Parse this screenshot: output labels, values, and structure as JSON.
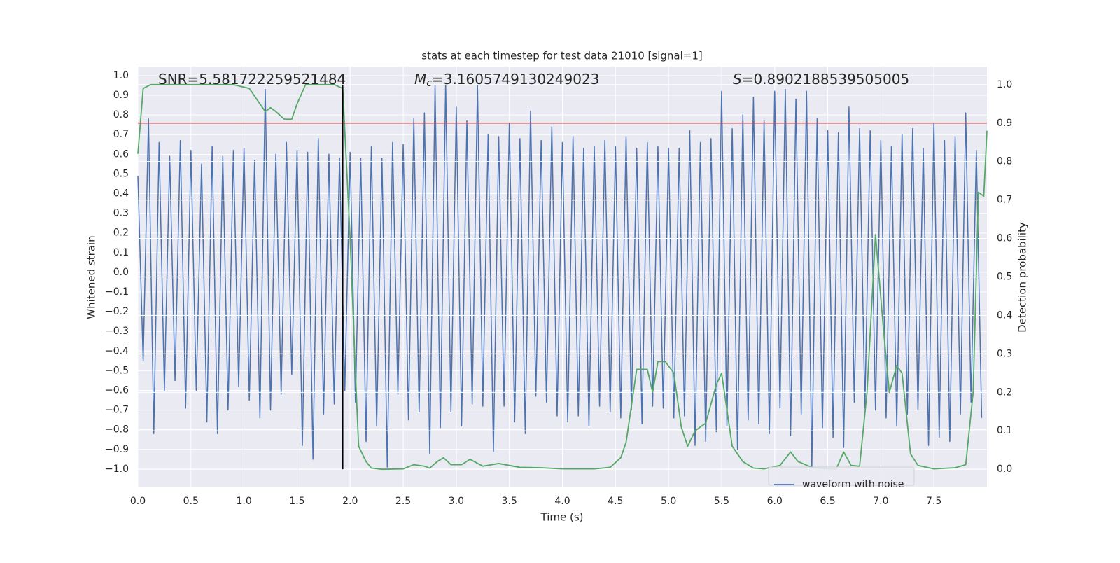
{
  "chart_data": {
    "type": "line",
    "title": "stats at each timestep for test data 21010 [signal=1]",
    "xlabel": "Time (s)",
    "ylabel": "Whitened strain",
    "y2label": "Detection probability",
    "annotations": [
      {
        "text": "SNR=5.581722259521484"
      },
      {
        "symbol": "M",
        "subscript": "c",
        "text": "=3.1605749130249023"
      },
      {
        "symbol": "S",
        "text": "=0.8902188539505005"
      }
    ],
    "xlim": [
      0,
      8.0
    ],
    "ylim": [
      -1.093,
      1.046
    ],
    "y2lim": [
      -0.047,
      1.047
    ],
    "xticks": [
      {
        "value": 0,
        "label": "0.0"
      },
      0.5,
      {
        "value": 1,
        "label": "1.0"
      },
      1.5,
      {
        "value": 2,
        "label": "2.0"
      },
      2.5,
      {
        "value": 3,
        "label": "3.0"
      },
      3.5,
      {
        "value": 4,
        "label": "4.0"
      },
      4.5,
      {
        "value": 5,
        "label": "5.0"
      },
      5.5,
      {
        "value": 6,
        "label": "6.0"
      },
      6.5,
      {
        "value": 7,
        "label": "7.0"
      },
      7.5
    ],
    "yticks": [
      {
        "value": -1,
        "label": "−1.0"
      },
      {
        "value": -0.9,
        "label": "−0.9"
      },
      {
        "value": -0.8,
        "label": "−0.8"
      },
      {
        "value": -0.7,
        "label": "−0.7"
      },
      {
        "value": -0.6,
        "label": "−0.6"
      },
      {
        "value": -0.5,
        "label": "−0.5"
      },
      {
        "value": -0.4,
        "label": "−0.4"
      },
      {
        "value": -0.3,
        "label": "−0.3"
      },
      {
        "value": -0.2,
        "label": "−0.2"
      },
      {
        "value": -0.1,
        "label": "−0.1"
      },
      {
        "value": 0,
        "label": "0.0"
      },
      0.1,
      0.2,
      0.3,
      0.4,
      0.5,
      0.6,
      0.7,
      0.8,
      0.9,
      {
        "value": 1,
        "label": "1.0"
      }
    ],
    "y2ticks": [
      {
        "value": 0,
        "label": "0.0"
      },
      0.1,
      0.2,
      0.3,
      0.4,
      0.5,
      0.6,
      0.7,
      0.8,
      0.9,
      {
        "value": 1,
        "label": "1.0"
      }
    ],
    "grid": true,
    "legend": "lower right",
    "hlines": [
      {
        "y": 0.9,
        "axis": "y2",
        "color": "#c44e52"
      }
    ],
    "vlines": [
      {
        "x": 1.93,
        "ymin": 0,
        "ymax": 1,
        "axis": "y2",
        "color": "#000000"
      }
    ],
    "series": [
      {
        "name": "waveform with noise",
        "color": "#4c72b0",
        "axis": "y",
        "x": [
          0,
          0.05,
          0.1,
          0.15,
          0.2,
          0.25,
          0.3,
          0.35,
          0.4,
          0.45,
          0.5,
          0.55,
          0.6,
          0.65,
          0.7,
          0.75,
          0.8,
          0.85,
          0.9,
          0.95,
          1,
          1.05,
          1.1,
          1.15,
          1.2,
          1.25,
          1.3,
          1.35,
          1.4,
          1.45,
          1.5,
          1.55,
          1.6,
          1.65,
          1.7,
          1.75,
          1.8,
          1.85,
          1.9,
          1.95,
          2,
          2.05,
          2.1,
          2.15,
          2.2,
          2.25,
          2.3,
          2.35,
          2.4,
          2.45,
          2.5,
          2.55,
          2.6,
          2.65,
          2.7,
          2.75,
          2.8,
          2.85,
          2.9,
          2.95,
          3,
          3.05,
          3.1,
          3.15,
          3.2,
          3.25,
          3.3,
          3.35,
          3.4,
          3.45,
          3.5,
          3.55,
          3.6,
          3.65,
          3.7,
          3.75,
          3.8,
          3.85,
          3.9,
          3.95,
          4,
          4.05,
          4.1,
          4.15,
          4.2,
          4.25,
          4.3,
          4.35,
          4.4,
          4.45,
          4.5,
          4.55,
          4.6,
          4.65,
          4.7,
          4.75,
          4.8,
          4.85,
          4.9,
          4.95,
          5,
          5.05,
          5.1,
          5.15,
          5.2,
          5.25,
          5.3,
          5.35,
          5.4,
          5.45,
          5.5,
          5.55,
          5.6,
          5.65,
          5.7,
          5.75,
          5.8,
          5.85,
          5.9,
          5.95,
          6,
          6.05,
          6.1,
          6.15,
          6.2,
          6.25,
          6.3,
          6.35,
          6.4,
          6.45,
          6.5,
          6.55,
          6.6,
          6.65,
          6.7,
          6.75,
          6.8,
          6.85,
          6.9,
          6.95,
          7,
          7.05,
          7.1,
          7.15,
          7.2,
          7.25,
          7.3,
          7.35,
          7.4,
          7.45,
          7.5,
          7.55,
          7.6,
          7.65,
          7.7,
          7.75,
          7.8,
          7.85,
          7.9,
          7.95
        ],
        "values": [
          0.49,
          -0.45,
          0.78,
          -0.82,
          0.66,
          -0.6,
          0.59,
          -0.55,
          0.67,
          -0.69,
          0.62,
          -0.6,
          0.55,
          -0.76,
          0.64,
          -0.82,
          0.59,
          -0.7,
          0.62,
          -0.58,
          0.63,
          -0.65,
          0.57,
          -0.74,
          0.93,
          -0.7,
          0.6,
          -0.62,
          0.66,
          -0.52,
          0.62,
          -0.88,
          0.61,
          -0.95,
          0.68,
          -0.72,
          0.6,
          -0.67,
          0.58,
          -0.6,
          0.61,
          -0.66,
          0.58,
          -0.86,
          0.64,
          -0.78,
          0.58,
          -0.99,
          0.66,
          -0.62,
          0.65,
          -0.75,
          0.78,
          -0.71,
          0.81,
          -0.92,
          0.95,
          -0.79,
          0.96,
          -0.71,
          0.84,
          -0.78,
          0.77,
          -0.67,
          0.95,
          -0.68,
          0.7,
          -0.91,
          0.69,
          -0.68,
          0.76,
          -0.76,
          0.68,
          -0.82,
          0.82,
          -0.63,
          0.67,
          -0.66,
          0.74,
          -0.73,
          0.66,
          -0.76,
          0.69,
          -0.73,
          0.63,
          -0.78,
          0.64,
          -0.68,
          0.67,
          -0.71,
          0.64,
          -0.74,
          0.69,
          -0.7,
          0.63,
          -0.77,
          0.66,
          -0.68,
          0.64,
          -0.69,
          0.63,
          -0.74,
          0.63,
          -0.73,
          0.72,
          -0.88,
          0.66,
          -0.86,
          0.68,
          -0.81,
          0.92,
          -0.78,
          0.73,
          -0.9,
          0.8,
          -0.75,
          0.89,
          -0.77,
          0.77,
          -0.82,
          0.92,
          -0.69,
          0.93,
          -0.83,
          0.88,
          -0.72,
          0.92,
          -0.99,
          0.78,
          -0.79,
          0.72,
          -0.84,
          0.71,
          -0.89,
          0.84,
          -0.66,
          0.73,
          -0.69,
          0.72,
          -0.7,
          0.67,
          -0.74,
          0.64,
          -0.78,
          0.7,
          -0.72,
          0.73,
          -0.7,
          0.63,
          -0.88,
          0.76,
          -0.84,
          0.67,
          -0.86,
          0.69,
          -0.72,
          0.81,
          -0.66,
          0.62,
          -0.74
        ]
      },
      {
        "color": "#55a868",
        "axis": "y2",
        "x": [
          0,
          0.05,
          0.12,
          0.3,
          0.6,
          0.9,
          1.05,
          1.2,
          1.25,
          1.3,
          1.38,
          1.45,
          1.5,
          1.58,
          1.7,
          1.85,
          1.93,
          2,
          2.05,
          2.08,
          2.15,
          2.2,
          2.3,
          2.5,
          2.6,
          2.7,
          2.75,
          2.82,
          2.88,
          2.95,
          3.05,
          3.13,
          3.25,
          3.4,
          3.6,
          3.8,
          4,
          4.3,
          4.45,
          4.55,
          4.6,
          4.7,
          4.8,
          4.85,
          4.9,
          4.97,
          5.05,
          5.12,
          5.18,
          5.25,
          5.35,
          5.45,
          5.5,
          5.6,
          5.7,
          5.8,
          5.9,
          6.05,
          6.15,
          6.22,
          6.35,
          6.5,
          6.58,
          6.65,
          6.72,
          6.8,
          6.87,
          6.95,
          7.02,
          7.08,
          7.15,
          7.2,
          7.28,
          7.35,
          7.5,
          7.7,
          7.8,
          7.87,
          7.92,
          7.97,
          8.0
        ],
        "values": [
          0.82,
          0.99,
          1.0,
          1.0,
          1.0,
          1.0,
          0.99,
          0.93,
          0.94,
          0.93,
          0.91,
          0.91,
          0.95,
          1.0,
          1.0,
          1.0,
          0.99,
          0.6,
          0.25,
          0.06,
          0.02,
          0.003,
          0.0,
          0.001,
          0.012,
          0.008,
          0.003,
          0.02,
          0.03,
          0.012,
          0.012,
          0.026,
          0.008,
          0.015,
          0.005,
          0.004,
          0.001,
          0.001,
          0.005,
          0.03,
          0.07,
          0.26,
          0.26,
          0.2,
          0.28,
          0.28,
          0.25,
          0.11,
          0.06,
          0.1,
          0.12,
          0.22,
          0.25,
          0.06,
          0.02,
          0.003,
          0.001,
          0.01,
          0.045,
          0.02,
          0.005,
          0.001,
          0.001,
          0.045,
          0.01,
          0.008,
          0.2,
          0.61,
          0.38,
          0.2,
          0.27,
          0.25,
          0.04,
          0.01,
          0.001,
          0.004,
          0.012,
          0.2,
          0.72,
          0.71,
          0.88
        ]
      }
    ]
  }
}
